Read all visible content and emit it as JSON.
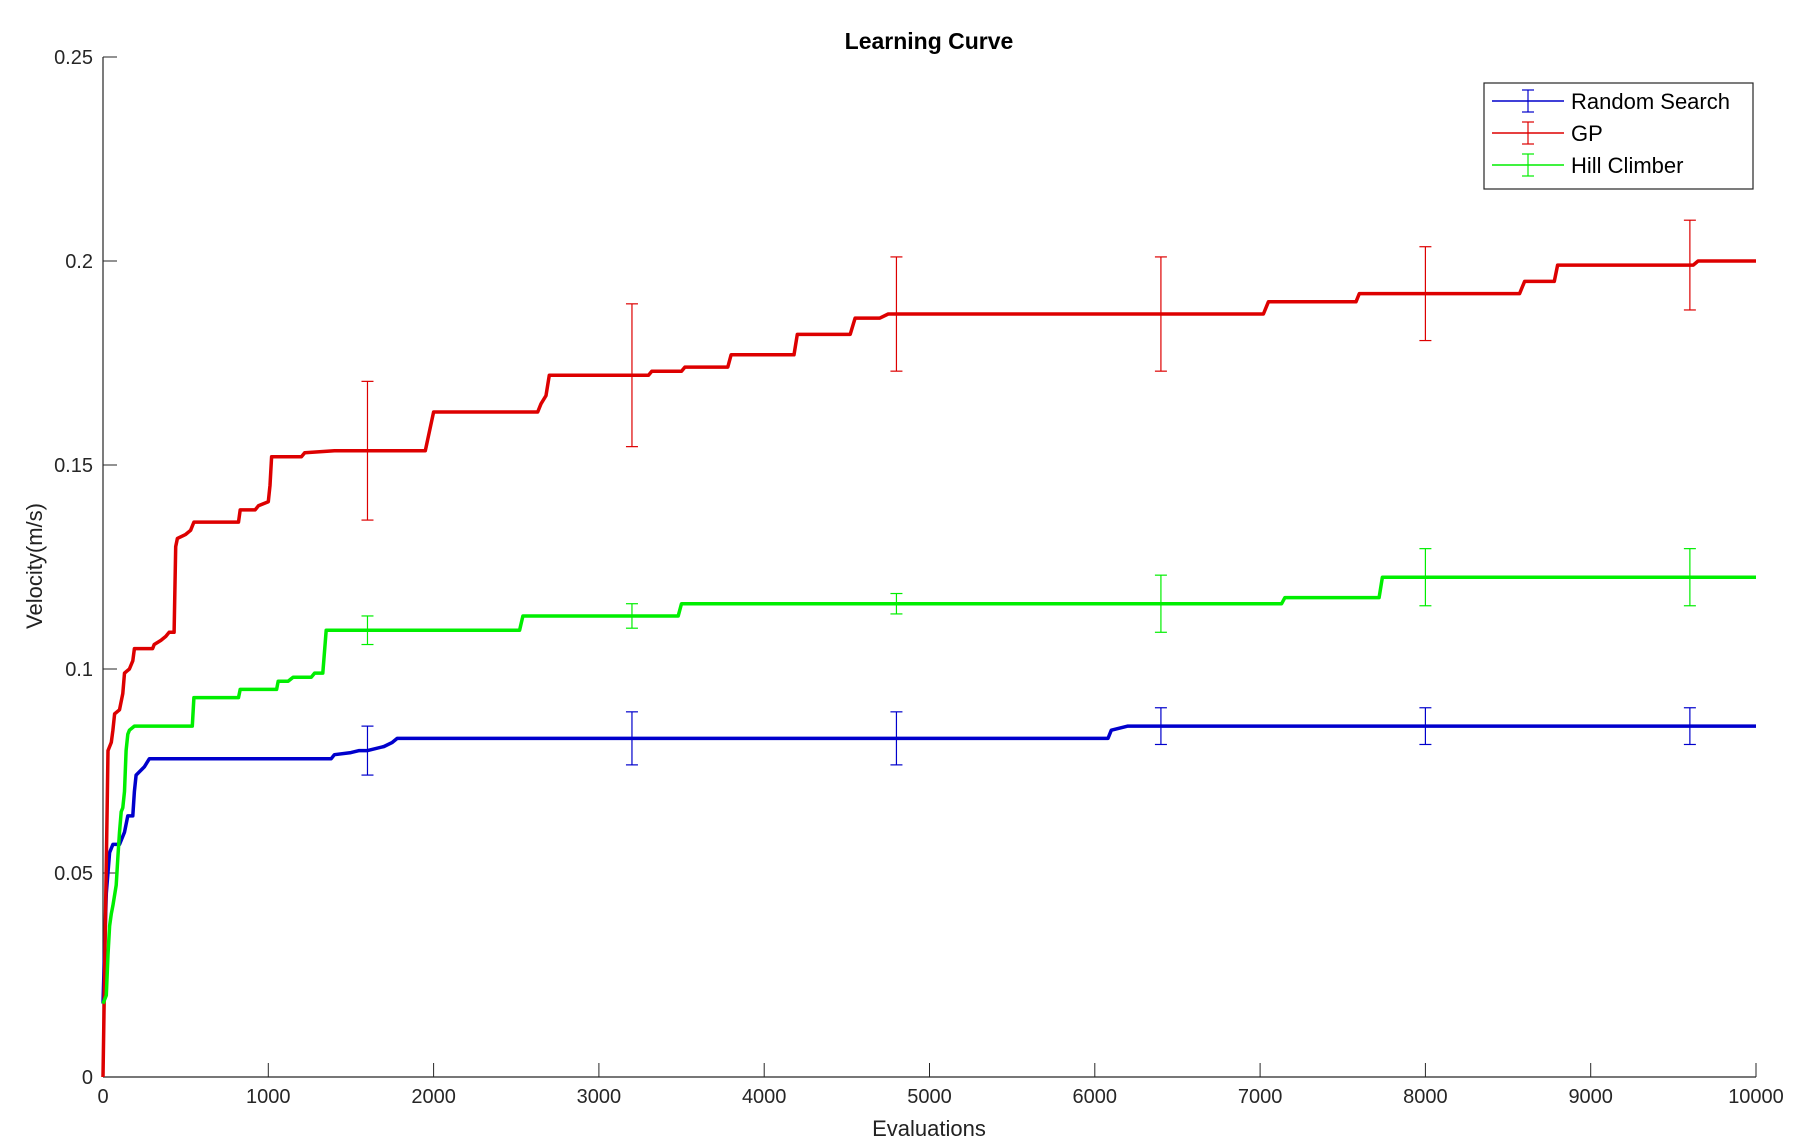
{
  "chart_data": {
    "type": "line",
    "title": "Learning Curve",
    "xlabel": "Evaluations",
    "ylabel": "Velocity(m/s)",
    "xlim": [
      0,
      10000
    ],
    "ylim": [
      0,
      0.25
    ],
    "x_ticks": [
      0,
      1000,
      2000,
      3000,
      4000,
      5000,
      6000,
      7000,
      8000,
      9000,
      10000
    ],
    "x_tick_labels": [
      "0",
      "1000",
      "2000",
      "3000",
      "4000",
      "5000",
      "6000",
      "7000",
      "8000",
      "9000",
      "10000"
    ],
    "y_ticks": [
      0,
      0.05,
      0.1,
      0.15,
      0.2,
      0.25
    ],
    "y_tick_labels": [
      "0",
      "0.05",
      "0.1",
      "0.15",
      "0.2",
      "0.25"
    ],
    "grid": false,
    "legend_position": "top-right",
    "series": [
      {
        "name": "Random Search",
        "color": "#0000cc",
        "points": [
          [
            0,
            0.018
          ],
          [
            20,
            0.045
          ],
          [
            40,
            0.055
          ],
          [
            60,
            0.057
          ],
          [
            100,
            0.057
          ],
          [
            130,
            0.06
          ],
          [
            150,
            0.064
          ],
          [
            180,
            0.064
          ],
          [
            190,
            0.07
          ],
          [
            200,
            0.074
          ],
          [
            250,
            0.076
          ],
          [
            280,
            0.078
          ],
          [
            1380,
            0.078
          ],
          [
            1400,
            0.079
          ],
          [
            1500,
            0.0795
          ],
          [
            1550,
            0.08
          ],
          [
            1600,
            0.08
          ],
          [
            1700,
            0.081
          ],
          [
            1750,
            0.082
          ],
          [
            1780,
            0.083
          ],
          [
            6080,
            0.083
          ],
          [
            6100,
            0.085
          ],
          [
            6200,
            0.086
          ],
          [
            10000,
            0.086
          ]
        ],
        "error_bars": [
          {
            "x": 1600,
            "y": 0.08,
            "err": 0.006
          },
          {
            "x": 3200,
            "y": 0.083,
            "err": 0.0065
          },
          {
            "x": 4800,
            "y": 0.083,
            "err": 0.0065
          },
          {
            "x": 6400,
            "y": 0.086,
            "err": 0.0045
          },
          {
            "x": 8000,
            "y": 0.086,
            "err": 0.0045
          },
          {
            "x": 9600,
            "y": 0.086,
            "err": 0.0045
          }
        ]
      },
      {
        "name": "GP",
        "color": "#dd0000",
        "points": [
          [
            0,
            0.0
          ],
          [
            15,
            0.04
          ],
          [
            25,
            0.065
          ],
          [
            30,
            0.08
          ],
          [
            50,
            0.082
          ],
          [
            60,
            0.085
          ],
          [
            70,
            0.089
          ],
          [
            100,
            0.09
          ],
          [
            120,
            0.094
          ],
          [
            130,
            0.099
          ],
          [
            160,
            0.1
          ],
          [
            180,
            0.102
          ],
          [
            190,
            0.105
          ],
          [
            300,
            0.105
          ],
          [
            310,
            0.106
          ],
          [
            350,
            0.107
          ],
          [
            380,
            0.108
          ],
          [
            400,
            0.109
          ],
          [
            430,
            0.109
          ],
          [
            440,
            0.13
          ],
          [
            450,
            0.132
          ],
          [
            500,
            0.133
          ],
          [
            530,
            0.134
          ],
          [
            550,
            0.136
          ],
          [
            820,
            0.136
          ],
          [
            830,
            0.139
          ],
          [
            920,
            0.139
          ],
          [
            940,
            0.14
          ],
          [
            1000,
            0.141
          ],
          [
            1010,
            0.145
          ],
          [
            1020,
            0.152
          ],
          [
            1200,
            0.152
          ],
          [
            1220,
            0.153
          ],
          [
            1400,
            0.1535
          ],
          [
            1950,
            0.1535
          ],
          [
            2000,
            0.163
          ],
          [
            2630,
            0.163
          ],
          [
            2650,
            0.165
          ],
          [
            2680,
            0.167
          ],
          [
            2700,
            0.172
          ],
          [
            3300,
            0.172
          ],
          [
            3320,
            0.173
          ],
          [
            3500,
            0.173
          ],
          [
            3520,
            0.174
          ],
          [
            3780,
            0.174
          ],
          [
            3800,
            0.177
          ],
          [
            4180,
            0.177
          ],
          [
            4200,
            0.182
          ],
          [
            4520,
            0.182
          ],
          [
            4550,
            0.186
          ],
          [
            4700,
            0.186
          ],
          [
            4750,
            0.187
          ],
          [
            7020,
            0.187
          ],
          [
            7050,
            0.19
          ],
          [
            7580,
            0.19
          ],
          [
            7600,
            0.192
          ],
          [
            8570,
            0.192
          ],
          [
            8600,
            0.195
          ],
          [
            8780,
            0.195
          ],
          [
            8800,
            0.199
          ],
          [
            9620,
            0.199
          ],
          [
            9650,
            0.2
          ],
          [
            10000,
            0.2
          ]
        ],
        "error_bars": [
          {
            "x": 1600,
            "y": 0.1535,
            "err": 0.017
          },
          {
            "x": 3200,
            "y": 0.172,
            "err": 0.0175
          },
          {
            "x": 4800,
            "y": 0.187,
            "err": 0.014
          },
          {
            "x": 6400,
            "y": 0.187,
            "err": 0.014
          },
          {
            "x": 8000,
            "y": 0.192,
            "err": 0.0115
          },
          {
            "x": 9600,
            "y": 0.199,
            "err": 0.011
          }
        ]
      },
      {
        "name": "Hill Climber",
        "color": "#00ee00",
        "points": [
          [
            0,
            0.018
          ],
          [
            20,
            0.02
          ],
          [
            30,
            0.03
          ],
          [
            40,
            0.037
          ],
          [
            50,
            0.04
          ],
          [
            60,
            0.042
          ],
          [
            80,
            0.047
          ],
          [
            90,
            0.054
          ],
          [
            100,
            0.06
          ],
          [
            110,
            0.065
          ],
          [
            120,
            0.066
          ],
          [
            130,
            0.07
          ],
          [
            140,
            0.08
          ],
          [
            150,
            0.084
          ],
          [
            160,
            0.085
          ],
          [
            190,
            0.086
          ],
          [
            540,
            0.086
          ],
          [
            550,
            0.093
          ],
          [
            820,
            0.093
          ],
          [
            830,
            0.095
          ],
          [
            1050,
            0.095
          ],
          [
            1060,
            0.097
          ],
          [
            1120,
            0.097
          ],
          [
            1150,
            0.098
          ],
          [
            1260,
            0.098
          ],
          [
            1280,
            0.099
          ],
          [
            1330,
            0.099
          ],
          [
            1350,
            0.1095
          ],
          [
            2520,
            0.1095
          ],
          [
            2540,
            0.113
          ],
          [
            3480,
            0.113
          ],
          [
            3500,
            0.116
          ],
          [
            7130,
            0.116
          ],
          [
            7150,
            0.1175
          ],
          [
            7720,
            0.1175
          ],
          [
            7740,
            0.1225
          ],
          [
            10000,
            0.1225
          ]
        ],
        "error_bars": [
          {
            "x": 1600,
            "y": 0.1095,
            "err": 0.0035
          },
          {
            "x": 3200,
            "y": 0.113,
            "err": 0.003
          },
          {
            "x": 4800,
            "y": 0.116,
            "err": 0.0025
          },
          {
            "x": 6400,
            "y": 0.116,
            "err": 0.007
          },
          {
            "x": 8000,
            "y": 0.1225,
            "err": 0.007
          },
          {
            "x": 9600,
            "y": 0.1225,
            "err": 0.007
          }
        ]
      }
    ]
  }
}
